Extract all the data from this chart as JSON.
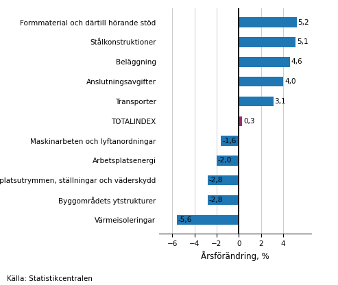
{
  "categories": [
    "Formmaterial och därtill hörande stöd",
    "Stålkonstruktioner",
    "Beläggning",
    "Anslutningsavgifter",
    "Transporter",
    "TOTALINDEX",
    "Maskinarbeten och lyftanordningar",
    "Arbetsplatsenergi",
    "Arbetsplatsutrymmen, ställningar och väderskydd",
    "Byggområdets ytstrukturer",
    "Värmeisoleringar"
  ],
  "values": [
    5.2,
    5.1,
    4.6,
    4.0,
    3.1,
    0.3,
    -1.6,
    -2.0,
    -2.8,
    -2.8,
    -5.6
  ],
  "bar_colors": [
    "#1f77b4",
    "#1f77b4",
    "#1f77b4",
    "#1f77b4",
    "#1f77b4",
    "#9b2d6f",
    "#1f77b4",
    "#1f77b4",
    "#1f77b4",
    "#1f77b4",
    "#1f77b4"
  ],
  "xlabel": "Årsförändring, %",
  "xlim": [
    -7.2,
    6.5
  ],
  "xticks": [
    -6,
    -4,
    -2,
    0,
    2,
    4
  ],
  "source": "Källa: Statistikcentralen",
  "label_fontsize": 7.5,
  "value_fontsize": 7.5,
  "xlabel_fontsize": 8.5,
  "source_fontsize": 7.5,
  "bar_height": 0.5
}
